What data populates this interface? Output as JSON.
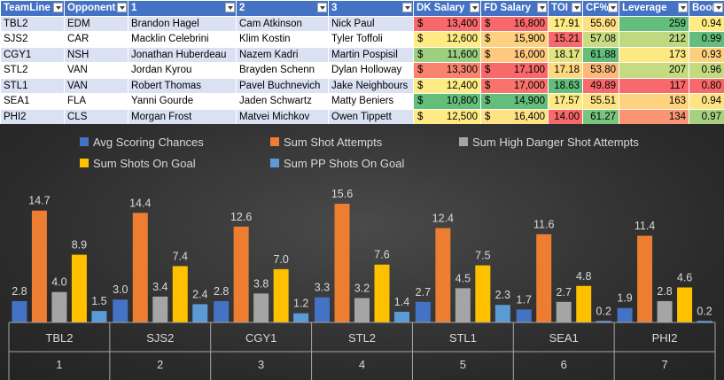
{
  "table": {
    "headers": [
      "TeamLine",
      "Opponent",
      "1",
      "2",
      "3",
      "DK Salary",
      "FD Salary",
      "TOI",
      "CF%",
      "Leverage",
      "Boom"
    ],
    "rows": [
      {
        "team": "TBL2",
        "opp": "EDM",
        "p1": "Brandon Hagel",
        "p2": "Cam Atkinson",
        "p3": "Nick Paul",
        "dk": "13,400",
        "fd": "16,800",
        "toi": "17.91",
        "cf": "55.60",
        "lev": "259",
        "boom": "0.94",
        "dk_color": "#f8696b",
        "fd_color": "#f8696b",
        "toi_color": "#ffeb84",
        "cf_color": "#fee083",
        "lev_color": "#63be7b",
        "boom_color": "#ffeb84"
      },
      {
        "team": "SJS2",
        "opp": "CAR",
        "p1": "Macklin Celebrini",
        "p2": "Klim Kostin",
        "p3": "Tyler Toffoli",
        "dk": "12,600",
        "fd": "15,900",
        "toi": "15.21",
        "cf": "57.08",
        "lev": "212",
        "boom": "0.99",
        "dk_color": "#ffeb84",
        "fd_color": "#fdd17f",
        "toi_color": "#f8696b",
        "cf_color": "#c9dc81",
        "lev_color": "#bfd980",
        "boom_color": "#63be7b"
      },
      {
        "team": "CGY1",
        "opp": "NSH",
        "p1": "Jonathan Huberdeau",
        "p2": "Nazem Kadri",
        "p3": "Martin Pospisil",
        "dk": "11,600",
        "fd": "16,000",
        "toi": "18.17",
        "cf": "61.88",
        "lev": "173",
        "boom": "0.93",
        "dk_color": "#9ccf7f",
        "fd_color": "#fdc97d",
        "toi_color": "#e2e383",
        "cf_color": "#63be7b",
        "lev_color": "#fde884",
        "boom_color": "#fdd07f"
      },
      {
        "team": "STL2",
        "opp": "VAN",
        "p1": "Jordan Kyrou",
        "p2": "Brayden Schenn",
        "p3": "Dylan Holloway",
        "dk": "13,300",
        "fd": "17,100",
        "toi": "17.18",
        "cf": "53.80",
        "lev": "207",
        "boom": "0.96",
        "dk_color": "#f98370",
        "fd_color": "#f8696b",
        "toi_color": "#fed981",
        "cf_color": "#fcb97a",
        "lev_color": "#c6db81",
        "boom_color": "#c3da80"
      },
      {
        "team": "STL1",
        "opp": "VAN",
        "p1": "Robert Thomas",
        "p2": "Pavel Buchnevich",
        "p3": "Jake Neighbours",
        "dk": "12,400",
        "fd": "17,000",
        "toi": "18.63",
        "cf": "49.89",
        "lev": "117",
        "boom": "0.80",
        "dk_color": "#ffeb84",
        "fd_color": "#f8736d",
        "toi_color": "#63be7b",
        "cf_color": "#f8696b",
        "lev_color": "#f8696b",
        "boom_color": "#f8696b"
      },
      {
        "team": "SEA1",
        "opp": "FLA",
        "p1": "Yanni Gourde",
        "p2": "Jaden Schwartz",
        "p3": "Matty Beniers",
        "dk": "10,800",
        "fd": "14,900",
        "toi": "17.57",
        "cf": "55.51",
        "lev": "163",
        "boom": "0.94",
        "dk_color": "#63be7b",
        "fd_color": "#63be7b",
        "toi_color": "#ffeb84",
        "cf_color": "#fee283",
        "lev_color": "#fdd37f",
        "boom_color": "#ffe483"
      },
      {
        "team": "PHI2",
        "opp": "CLS",
        "p1": "Morgan Frost",
        "p2": "Matvei Michkov",
        "p3": "Owen Tippett",
        "dk": "12,500",
        "fd": "16,400",
        "toi": "14.00",
        "cf": "61.27",
        "lev": "134",
        "boom": "0.97",
        "dk_color": "#ffeb84",
        "fd_color": "#fee283",
        "toi_color": "#f8696b",
        "cf_color": "#7ac57d",
        "lev_color": "#fa9473",
        "boom_color": "#a6d27f"
      }
    ],
    "currency": "$"
  },
  "chart_data": {
    "type": "bar",
    "categories": [
      "TBL2",
      "SJS2",
      "CGY1",
      "STL2",
      "STL1",
      "SEA1",
      "PHI2"
    ],
    "category_numbers": [
      "1",
      "2",
      "3",
      "4",
      "5",
      "6",
      "7"
    ],
    "series": [
      {
        "name": "Avg Scoring Chances",
        "color": "#4472c4",
        "values": [
          2.8,
          3.0,
          2.8,
          3.3,
          2.7,
          1.7,
          1.9
        ]
      },
      {
        "name": "Sum Shot Attempts",
        "color": "#ed7d31",
        "values": [
          14.7,
          14.4,
          12.6,
          15.6,
          12.4,
          11.6,
          11.4
        ]
      },
      {
        "name": "Sum High Danger Shot Attempts",
        "color": "#a5a5a5",
        "values": [
          4.0,
          3.4,
          3.8,
          3.2,
          4.5,
          2.7,
          2.8
        ]
      },
      {
        "name": "Sum Shots On Goal",
        "color": "#ffc000",
        "values": [
          8.9,
          7.4,
          7.0,
          7.6,
          7.5,
          4.8,
          4.6
        ]
      },
      {
        "name": "Sum PP Shots On Goal",
        "color": "#5b9bd5",
        "values": [
          1.5,
          2.4,
          1.2,
          1.4,
          2.3,
          0.2,
          0.2
        ]
      }
    ],
    "ylim": [
      0,
      16
    ],
    "grid": false,
    "legend": "top"
  }
}
